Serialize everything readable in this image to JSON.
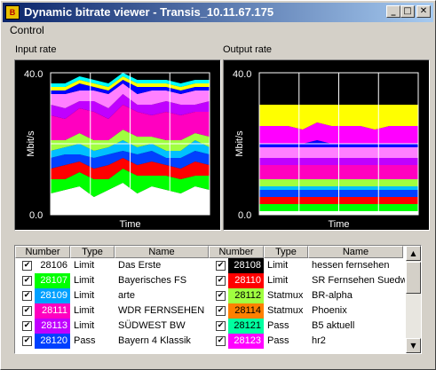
{
  "window": {
    "title": "Dynamic bitrate viewer - Transis_10.11.67.175",
    "icon": "app-icon"
  },
  "title_buttons": [
    {
      "name": "minimize",
      "glyph": "_"
    },
    {
      "name": "maximize",
      "glyph": "□"
    },
    {
      "name": "close",
      "glyph": "✕"
    }
  ],
  "menu": {
    "items": [
      "Control"
    ]
  },
  "chart_data": [
    {
      "type": "area",
      "title": "Input rate",
      "xlabel": "Time",
      "ylabel": "Mbit/s",
      "ylim": [
        0,
        40
      ],
      "ytick_labels": [
        "40.0",
        "0.0"
      ],
      "grid": true,
      "stacked": true,
      "series": [
        {
          "color": "#ffffff",
          "values": [
            6,
            7,
            8,
            5,
            7,
            9,
            6,
            8,
            7,
            6,
            8,
            7
          ]
        },
        {
          "color": "#00ff00",
          "values": [
            4,
            3,
            4,
            5,
            3,
            4,
            5,
            3,
            4,
            4,
            3,
            4
          ]
        },
        {
          "color": "#ff0000",
          "values": [
            3,
            4,
            3,
            3,
            4,
            3,
            3,
            4,
            3,
            3,
            4,
            3
          ]
        },
        {
          "color": "#0040ff",
          "values": [
            3,
            3,
            2,
            3,
            3,
            2,
            3,
            3,
            2,
            3,
            3,
            3
          ]
        },
        {
          "color": "#00c0ff",
          "values": [
            2,
            2,
            3,
            2,
            2,
            3,
            2,
            2,
            2,
            2,
            3,
            2
          ]
        },
        {
          "color": "#a0ff40",
          "values": [
            3,
            2,
            3,
            3,
            2,
            3,
            3,
            2,
            3,
            3,
            2,
            3
          ]
        },
        {
          "color": "#ff00c0",
          "values": [
            7,
            6,
            7,
            8,
            6,
            7,
            7,
            6,
            8,
            7,
            6,
            7
          ]
        },
        {
          "color": "#c000ff",
          "values": [
            3,
            3,
            2,
            3,
            3,
            3,
            2,
            3,
            3,
            3,
            2,
            3
          ]
        },
        {
          "color": "#ff80ff",
          "values": [
            3,
            4,
            3,
            3,
            4,
            3,
            3,
            4,
            3,
            3,
            4,
            3
          ]
        },
        {
          "color": "#0000ff",
          "values": [
            1,
            1,
            2,
            1,
            1,
            1,
            2,
            1,
            1,
            1,
            1,
            1
          ]
        },
        {
          "color": "#ffff00",
          "values": [
            1,
            1,
            1,
            1,
            1,
            1,
            1,
            1,
            1,
            1,
            1,
            1
          ]
        },
        {
          "color": "#00ffff",
          "values": [
            1,
            1,
            1,
            1,
            1,
            1,
            1,
            1,
            1,
            1,
            1,
            1
          ]
        }
      ]
    },
    {
      "type": "area",
      "title": "Output rate",
      "xlabel": "Time",
      "ylabel": "Mbit/s",
      "ylim": [
        0,
        40
      ],
      "ytick_labels": [
        "40.0",
        "0.0"
      ],
      "grid": true,
      "stacked": true,
      "series": [
        {
          "color": "#ffffff",
          "values": [
            1,
            1,
            1,
            1,
            1,
            1,
            1,
            1,
            1,
            1,
            1,
            1
          ]
        },
        {
          "color": "#00ff00",
          "values": [
            2,
            2,
            2,
            2,
            2,
            2,
            2,
            2,
            2,
            2,
            2,
            2
          ]
        },
        {
          "color": "#ff0000",
          "values": [
            2,
            2,
            2,
            2,
            2,
            2,
            2,
            2,
            2,
            2,
            2,
            2
          ]
        },
        {
          "color": "#0040ff",
          "values": [
            2,
            2,
            2,
            2,
            2,
            2,
            2,
            2,
            2,
            2,
            2,
            2
          ]
        },
        {
          "color": "#00c0ff",
          "values": [
            1,
            1,
            1,
            1,
            1,
            1,
            1,
            1,
            1,
            1,
            1,
            1
          ]
        },
        {
          "color": "#a0ff40",
          "values": [
            2,
            2,
            2,
            2,
            2,
            2,
            2,
            2,
            2,
            2,
            2,
            2
          ]
        },
        {
          "color": "#ff00c0",
          "values": [
            4,
            4,
            4,
            4,
            4,
            4,
            4,
            4,
            4,
            4,
            4,
            4
          ]
        },
        {
          "color": "#c000ff",
          "values": [
            2,
            2,
            2,
            2,
            2,
            2,
            2,
            2,
            2,
            2,
            2,
            2
          ]
        },
        {
          "color": "#ff80ff",
          "values": [
            3,
            3,
            3,
            3,
            3,
            3,
            3,
            3,
            3,
            3,
            3,
            3
          ]
        },
        {
          "color": "#0000ff",
          "values": [
            1,
            1,
            1,
            1,
            2,
            1,
            1,
            1,
            1,
            1,
            1,
            1
          ]
        },
        {
          "color": "#ff00ff",
          "values": [
            5,
            5,
            5,
            4,
            5,
            5,
            5,
            5,
            4,
            5,
            5,
            5
          ]
        },
        {
          "color": "#ffff00",
          "values": [
            6,
            6,
            6,
            7,
            5,
            6,
            6,
            6,
            7,
            6,
            6,
            6
          ]
        }
      ]
    }
  ],
  "table": {
    "columns": [
      "Number",
      "Type",
      "Name",
      "Number",
      "Type",
      "Name"
    ],
    "rows": [
      {
        "left": {
          "checked": true,
          "number": "28106",
          "color": "#ffffff",
          "text_color": "#000000",
          "type": "Limit",
          "name": "Das Erste"
        },
        "right": {
          "checked": true,
          "number": "28108",
          "color": "#000000",
          "text_color": "#ffffff",
          "type": "Limit",
          "name": "hessen fernsehen"
        }
      },
      {
        "left": {
          "checked": true,
          "number": "28107",
          "color": "#00ff00",
          "text_color": "#ffffff",
          "type": "Limit",
          "name": "Bayerisches FS"
        },
        "right": {
          "checked": true,
          "number": "28110",
          "color": "#ff0000",
          "text_color": "#ffffff",
          "type": "Limit",
          "name": "SR Fernsehen Suedwest"
        }
      },
      {
        "left": {
          "checked": true,
          "number": "28109",
          "color": "#00a0ff",
          "text_color": "#ffffff",
          "type": "Limit",
          "name": "arte"
        },
        "right": {
          "checked": true,
          "number": "28112",
          "color": "#a0ff40",
          "text_color": "#000000",
          "type": "Statmux",
          "name": "BR-alpha"
        }
      },
      {
        "left": {
          "checked": true,
          "number": "28111",
          "color": "#ff00c0",
          "text_color": "#ffffff",
          "type": "Limit",
          "name": "WDR FERNSEHEN"
        },
        "right": {
          "checked": true,
          "number": "28114",
          "color": "#ff8000",
          "text_color": "#000000",
          "type": "Statmux",
          "name": "Phoenix"
        }
      },
      {
        "left": {
          "checked": true,
          "number": "28113",
          "color": "#c000ff",
          "text_color": "#ffffff",
          "type": "Limit",
          "name": "SÜDWEST BW"
        },
        "right": {
          "checked": true,
          "number": "28121",
          "color": "#00ffa0",
          "text_color": "#000000",
          "type": "Pass",
          "name": "B5 aktuell"
        }
      },
      {
        "left": {
          "checked": true,
          "number": "28120",
          "color": "#0040ff",
          "text_color": "#ffffff",
          "type": "Pass",
          "name": "Bayern 4 Klassik"
        },
        "right": {
          "checked": true,
          "number": "28123",
          "color": "#ff00ff",
          "text_color": "#ffffff",
          "type": "Pass",
          "name": "hr2"
        }
      }
    ]
  },
  "scrollbar": {
    "up_glyph": "▲",
    "down_glyph": "▼"
  }
}
